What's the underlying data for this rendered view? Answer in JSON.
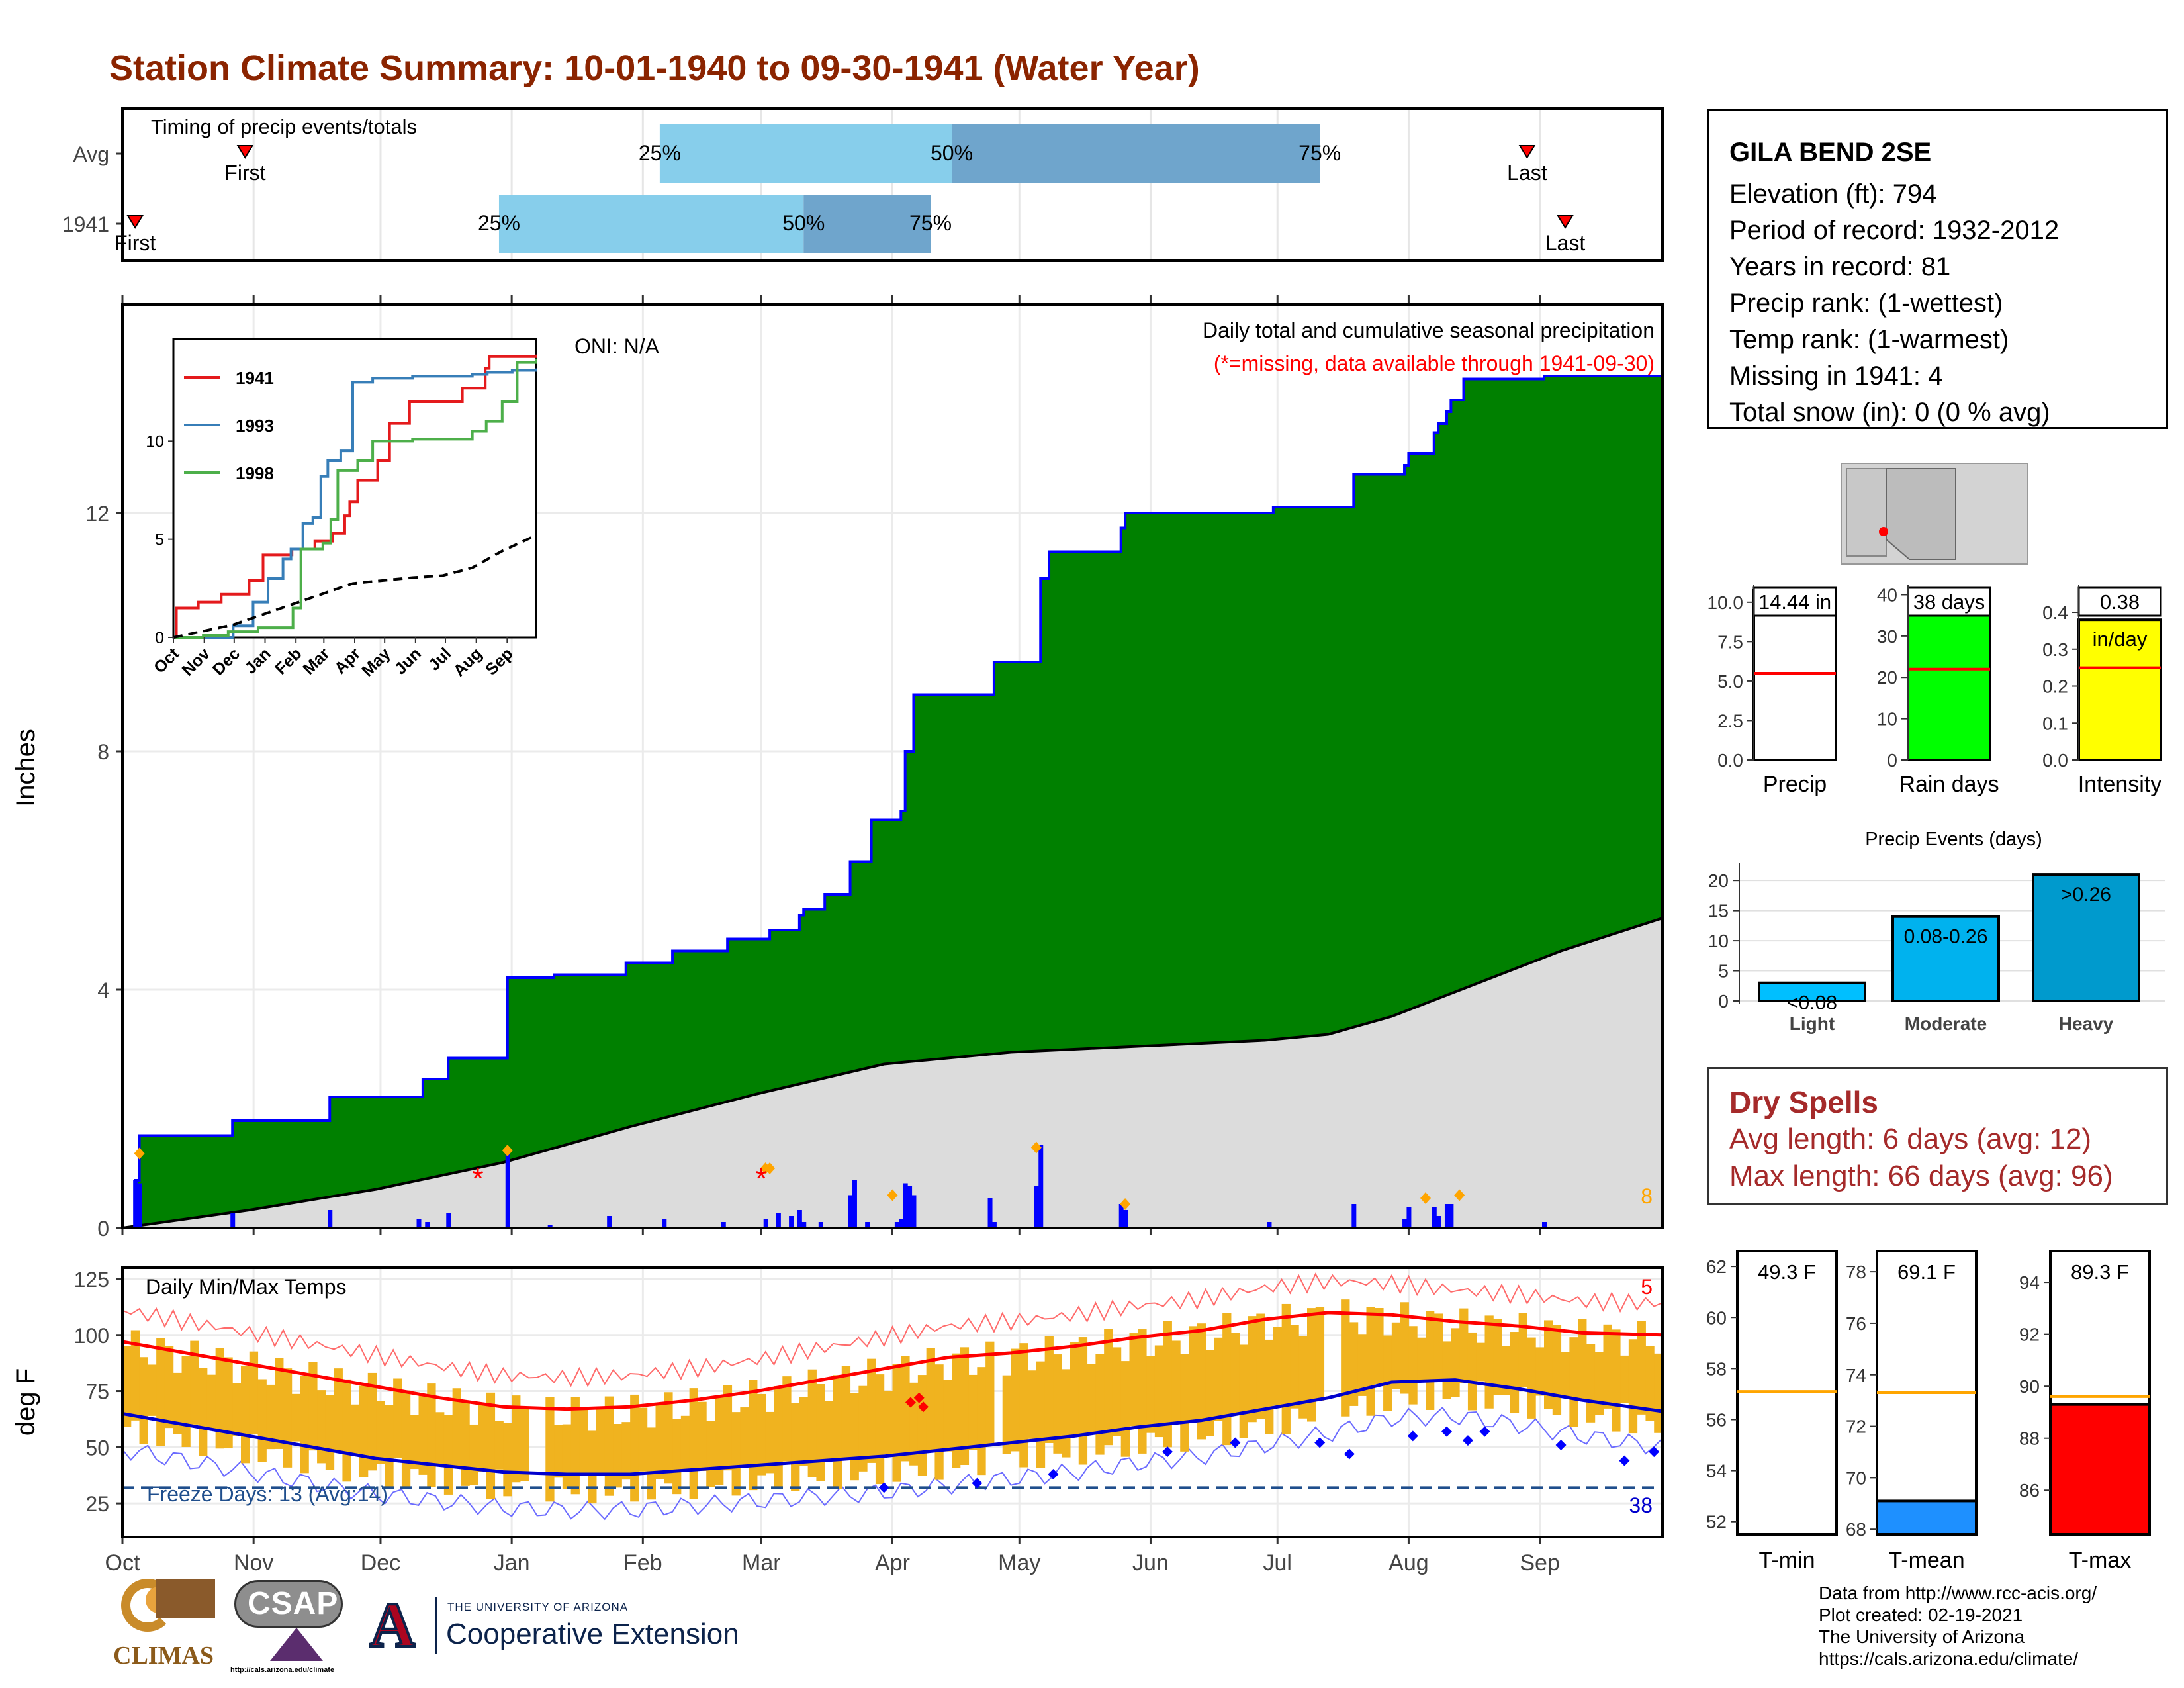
{
  "title": "Station Climate Summary: 10-01-1940 to 09-30-1941 (Water Year)",
  "station": {
    "name": "GILA BEND 2SE",
    "lines": [
      "Elevation (ft): 794",
      "Period of record: 1932-2012",
      "Years in record: 81",
      "Precip rank:  (1-wettest)",
      "Temp rank:  (1-warmest)",
      "Missing in 1941: 4",
      "Total snow (in): 0 (0 % avg)"
    ]
  },
  "dry_spells": {
    "title": "Dry Spells",
    "avg": "Avg length: 6 days (avg: 12)",
    "max": "Max length: 66 days (avg: 96)"
  },
  "credits": [
    "Data from http://www.rcc-acis.org/",
    "Plot created: 02-19-2021",
    "The University of Arizona",
    "https://cals.arizona.edu/climate/"
  ],
  "logos": {
    "climas": "CLIMAS",
    "csap": "CSAP",
    "csap_url": "http://cals.arizona.edu/climate",
    "ua_small": "THE UNIVERSITY OF ARIZONA",
    "ua_big": "Cooperative Extension"
  },
  "colors": {
    "title": "#8b2400",
    "cumulative_fill": "#008000",
    "cumulative_line": "#0000ff",
    "avg_fill": "#dcdcdc",
    "temp_bars": "#f0b31f",
    "max_line": "#ff0000",
    "min_line": "#0000cd",
    "bar_light": "#87ceeb",
    "bar_dark": "#6fa5cc"
  },
  "chart_data": [
    {
      "type": "bar",
      "name": "timing",
      "title": "Timing of precip events/totals",
      "rows": [
        {
          "label": "Avg",
          "q25_day": 127,
          "q50_day": 196,
          "q75_day": 283,
          "first_day": 29,
          "last_day": 332,
          "first_label": "First",
          "last_label": "Last"
        },
        {
          "label": "1941",
          "q25_day": 89,
          "q50_day": 161,
          "q75_day": 191,
          "first_day": 3,
          "last_day": 341,
          "first_label": "First",
          "last_label": "Last"
        }
      ],
      "q_labels": [
        "25%",
        "50%",
        "75%"
      ]
    },
    {
      "type": "area",
      "name": "precip",
      "title": "Daily total and cumulative seasonal precipitation",
      "subtitle": "(*=missing, data available through 1941-09-30)",
      "oni": "ONI: N/A",
      "ylabel": "Inches",
      "ylim": [
        0,
        15.5
      ],
      "yticks": [
        "0",
        "4",
        "8",
        "12"
      ],
      "xticks": [
        "Oct",
        "Nov",
        "Dec",
        "Jan",
        "Feb",
        "Mar",
        "Apr",
        "May",
        "Jun",
        "Jul",
        "Aug",
        "Sep"
      ],
      "corner_count": "8",
      "cumulative": [
        [
          0,
          0
        ],
        [
          3,
          0.8
        ],
        [
          4,
          1.55
        ],
        [
          25,
          1.55
        ],
        [
          26,
          1.8
        ],
        [
          48,
          1.8
        ],
        [
          49,
          2.2
        ],
        [
          70,
          2.2
        ],
        [
          71,
          2.5
        ],
        [
          76,
          2.5
        ],
        [
          77,
          2.85
        ],
        [
          90,
          2.85
        ],
        [
          91,
          4.2
        ],
        [
          101,
          4.2
        ],
        [
          102,
          4.25
        ],
        [
          118,
          4.25
        ],
        [
          119,
          4.45
        ],
        [
          129,
          4.45
        ],
        [
          130,
          4.65
        ],
        [
          142,
          4.65
        ],
        [
          143,
          4.85
        ],
        [
          152,
          4.85
        ],
        [
          153,
          5.0
        ],
        [
          159,
          5.0
        ],
        [
          160,
          5.25
        ],
        [
          161,
          5.35
        ],
        [
          165,
          5.35
        ],
        [
          166,
          5.6
        ],
        [
          171,
          5.6
        ],
        [
          172,
          6.15
        ],
        [
          177,
          6.85
        ],
        [
          183,
          6.85
        ],
        [
          184,
          7.0
        ],
        [
          185,
          8.0
        ],
        [
          187,
          8.95
        ],
        [
          205,
          8.95
        ],
        [
          206,
          9.5
        ],
        [
          216,
          9.5
        ],
        [
          217,
          10.9
        ],
        [
          219,
          11.35
        ],
        [
          235,
          11.35
        ],
        [
          236,
          11.75
        ],
        [
          237,
          12.0
        ],
        [
          271,
          12.0
        ],
        [
          272,
          12.1
        ],
        [
          290,
          12.1
        ],
        [
          291,
          12.65
        ],
        [
          302,
          12.65
        ],
        [
          303,
          12.8
        ],
        [
          304,
          13.0
        ],
        [
          309,
          13.0
        ],
        [
          310,
          13.35
        ],
        [
          311,
          13.5
        ],
        [
          313,
          13.7
        ],
        [
          314,
          13.9
        ],
        [
          316,
          13.9
        ],
        [
          317,
          14.25
        ],
        [
          335,
          14.25
        ],
        [
          336,
          14.3
        ],
        [
          364,
          14.3
        ]
      ],
      "average_cumulative": [
        [
          0,
          0
        ],
        [
          30,
          0.3
        ],
        [
          60,
          0.65
        ],
        [
          90,
          1.1
        ],
        [
          120,
          1.7
        ],
        [
          150,
          2.25
        ],
        [
          180,
          2.75
        ],
        [
          210,
          2.95
        ],
        [
          240,
          3.05
        ],
        [
          270,
          3.15
        ],
        [
          285,
          3.25
        ],
        [
          300,
          3.55
        ],
        [
          320,
          4.1
        ],
        [
          340,
          4.65
        ],
        [
          364,
          5.2
        ]
      ],
      "daily": [
        [
          3,
          0.8
        ],
        [
          4,
          0.75
        ],
        [
          26,
          0.25
        ],
        [
          49,
          0.3
        ],
        [
          70,
          0.15
        ],
        [
          72,
          0.1
        ],
        [
          77,
          0.25
        ],
        [
          91,
          1.25
        ],
        [
          101,
          0.05
        ],
        [
          115,
          0.2
        ],
        [
          128,
          0.15
        ],
        [
          142,
          0.1
        ],
        [
          152,
          0.15
        ],
        [
          155,
          0.25
        ],
        [
          158,
          0.2
        ],
        [
          160,
          0.3
        ],
        [
          161,
          0.1
        ],
        [
          165,
          0.1
        ],
        [
          172,
          0.55
        ],
        [
          173,
          0.8
        ],
        [
          176,
          0.1
        ],
        [
          183,
          0.1
        ],
        [
          184,
          0.15
        ],
        [
          185,
          0.75
        ],
        [
          186,
          0.7
        ],
        [
          187,
          0.55
        ],
        [
          205,
          0.5
        ],
        [
          206,
          0.1
        ],
        [
          216,
          0.7
        ],
        [
          217,
          1.4
        ],
        [
          236,
          0.4
        ],
        [
          237,
          0.3
        ],
        [
          271,
          0.1
        ],
        [
          291,
          0.4
        ],
        [
          303,
          0.15
        ],
        [
          304,
          0.35
        ],
        [
          310,
          0.35
        ],
        [
          311,
          0.2
        ],
        [
          313,
          0.4
        ],
        [
          314,
          0.4
        ],
        [
          336,
          0.1
        ]
      ],
      "missing_days": [
        84,
        151
      ],
      "event_days": [
        [
          4,
          1.25
        ],
        [
          91,
          1.3
        ],
        [
          152,
          1.0
        ],
        [
          153,
          1.0
        ],
        [
          182,
          0.55
        ],
        [
          216,
          1.35
        ],
        [
          237,
          0.4
        ],
        [
          308,
          0.5
        ],
        [
          316,
          0.55
        ]
      ]
    },
    {
      "type": "line",
      "name": "inset",
      "series": [
        {
          "name": "1941",
          "color": "#e41a1c",
          "points": [
            [
              0,
              0
            ],
            [
              3,
              1.5
            ],
            [
              25,
              1.8
            ],
            [
              48,
              2.2
            ],
            [
              76,
              2.9
            ],
            [
              90,
              4.2
            ],
            [
              119,
              4.5
            ],
            [
              142,
              4.9
            ],
            [
              160,
              5.3
            ],
            [
              172,
              6.2
            ],
            [
              177,
              6.9
            ],
            [
              185,
              8.0
            ],
            [
              205,
              9.0
            ],
            [
              217,
              10.9
            ],
            [
              237,
              12.0
            ],
            [
              270,
              12.0
            ],
            [
              290,
              12.7
            ],
            [
              313,
              13.7
            ],
            [
              317,
              14.3
            ],
            [
              364,
              14.4
            ]
          ]
        },
        {
          "name": "1993",
          "color": "#377eb8",
          "points": [
            [
              0,
              0
            ],
            [
              60,
              0.6
            ],
            [
              80,
              1.8
            ],
            [
              95,
              3.0
            ],
            [
              110,
              4.0
            ],
            [
              118,
              4.5
            ],
            [
              130,
              5.8
            ],
            [
              140,
              6.1
            ],
            [
              148,
              8.2
            ],
            [
              155,
              9.0
            ],
            [
              168,
              9.5
            ],
            [
              180,
              13.0
            ],
            [
              200,
              13.2
            ],
            [
              240,
              13.3
            ],
            [
              300,
              13.4
            ],
            [
              315,
              13.5
            ],
            [
              340,
              13.6
            ],
            [
              364,
              13.7
            ]
          ]
        },
        {
          "name": "1998",
          "color": "#4daf4a",
          "points": [
            [
              0,
              0
            ],
            [
              30,
              0.1
            ],
            [
              55,
              0.3
            ],
            [
              85,
              0.5
            ],
            [
              120,
              1.5
            ],
            [
              128,
              4.5
            ],
            [
              150,
              4.8
            ],
            [
              158,
              6.0
            ],
            [
              165,
              8.5
            ],
            [
              185,
              9.0
            ],
            [
              200,
              10.0
            ],
            [
              240,
              10.1
            ],
            [
              300,
              10.5
            ],
            [
              314,
              11.0
            ],
            [
              330,
              12.0
            ],
            [
              345,
              14.0
            ],
            [
              364,
              14.2
            ]
          ]
        },
        {
          "name": "avg",
          "color": "#000000",
          "dash": true,
          "points": [
            [
              0,
              0
            ],
            [
              60,
              0.65
            ],
            [
              120,
              1.7
            ],
            [
              180,
              2.75
            ],
            [
              240,
              3.05
            ],
            [
              270,
              3.15
            ],
            [
              300,
              3.55
            ],
            [
              330,
              4.4
            ],
            [
              364,
              5.2
            ]
          ]
        }
      ],
      "yticks": [
        "0",
        "5",
        "10"
      ],
      "ylim": [
        0,
        15
      ],
      "xticks": [
        "Oct",
        "Nov",
        "Dec",
        "Jan",
        "Feb",
        "Mar",
        "Apr",
        "May",
        "Jun",
        "Jul",
        "Aug",
        "Sep"
      ]
    },
    {
      "type": "bar",
      "name": "temps",
      "title": "Daily Min/Max Temps",
      "ylabel": "deg F",
      "ylim": [
        10,
        130
      ],
      "yticks": [
        "25",
        "50",
        "75",
        "100",
        "125"
      ],
      "xticks": [
        "Oct",
        "Nov",
        "Dec",
        "Jan",
        "Feb",
        "Mar",
        "Apr",
        "May",
        "Jun",
        "Jul",
        "Aug",
        "Sep"
      ],
      "freeze_line": 32,
      "freeze_label": "Freeze Days: 13 (Avg:14)",
      "corner_max": "5",
      "corner_min": "38",
      "avg_max": [
        [
          0,
          97
        ],
        [
          15,
          92
        ],
        [
          30,
          87
        ],
        [
          45,
          82
        ],
        [
          60,
          77
        ],
        [
          75,
          72
        ],
        [
          90,
          68
        ],
        [
          105,
          67
        ],
        [
          120,
          68
        ],
        [
          135,
          71
        ],
        [
          150,
          75
        ],
        [
          165,
          80
        ],
        [
          180,
          85
        ],
        [
          195,
          90
        ],
        [
          210,
          92
        ],
        [
          225,
          95
        ],
        [
          240,
          99
        ],
        [
          255,
          102
        ],
        [
          270,
          107
        ],
        [
          285,
          110
        ],
        [
          300,
          109
        ],
        [
          315,
          106
        ],
        [
          330,
          104
        ],
        [
          345,
          101
        ],
        [
          364,
          100
        ]
      ],
      "avg_min": [
        [
          0,
          65
        ],
        [
          15,
          60
        ],
        [
          30,
          55
        ],
        [
          45,
          50
        ],
        [
          60,
          45
        ],
        [
          75,
          42
        ],
        [
          90,
          39
        ],
        [
          105,
          38
        ],
        [
          120,
          38
        ],
        [
          135,
          40
        ],
        [
          150,
          42
        ],
        [
          165,
          44
        ],
        [
          180,
          46
        ],
        [
          195,
          49
        ],
        [
          210,
          52
        ],
        [
          225,
          55
        ],
        [
          240,
          59
        ],
        [
          255,
          62
        ],
        [
          270,
          67
        ],
        [
          285,
          72
        ],
        [
          300,
          79
        ],
        [
          315,
          80
        ],
        [
          330,
          76
        ],
        [
          345,
          71
        ],
        [
          364,
          66
        ]
      ]
    },
    {
      "type": "bar",
      "name": "summary_precip",
      "panels": [
        {
          "label": "Precip",
          "value_label": "14.44 in",
          "value": 14.44,
          "avg": 5.5,
          "ymax": 11,
          "ticks": [
            "0.0",
            "2.5",
            "5.0",
            "7.5",
            "10.0"
          ],
          "color": "#ffffff"
        },
        {
          "label": "Rain days",
          "value_label": "38 days",
          "value": 38,
          "avg": 22,
          "ymax": 42,
          "ticks": [
            "0",
            "10",
            "20",
            "30",
            "40"
          ],
          "color": "#00ff00"
        },
        {
          "label": "Intensity",
          "value_label": "0.38",
          "unit_label": "in/day",
          "value": 0.38,
          "avg": 0.25,
          "ymax": 0.47,
          "ticks": [
            "0.0",
            "0.1",
            "0.2",
            "0.3",
            "0.4"
          ],
          "color": "#ffff00"
        }
      ]
    },
    {
      "type": "bar",
      "name": "precip_events",
      "title": "Precip Events (days)",
      "categories": [
        "Light",
        "Moderate",
        "Heavy"
      ],
      "values": [
        3,
        14,
        21
      ],
      "bar_labels": [
        "<0.08",
        "0.08-0.26",
        ">0.26"
      ],
      "colors": [
        "#00bfff",
        "#00b2ee",
        "#009acd"
      ],
      "yticks": [
        "0",
        "5",
        "10",
        "15",
        "20"
      ],
      "ylim": [
        0,
        22
      ]
    },
    {
      "type": "bar",
      "name": "temp_summary",
      "panels": [
        {
          "label": "T-min",
          "value_label": "49.3 F",
          "value": 49.3,
          "avg": 57.1,
          "ymin": 51.5,
          "ymax": 62.6,
          "ticks": [
            "52",
            "54",
            "56",
            "58",
            "60",
            "62"
          ],
          "color": "#ffffff"
        },
        {
          "label": "T-mean",
          "value_label": "69.1 F",
          "value": 69.1,
          "avg": 73.3,
          "ymin": 67.8,
          "ymax": 78.8,
          "ticks": [
            "68",
            "70",
            "72",
            "74",
            "76",
            "78"
          ],
          "color": "#1e90ff"
        },
        {
          "label": "T-max",
          "value_label": "89.3 F",
          "value": 89.3,
          "avg": 89.6,
          "ymin": 84.3,
          "ymax": 95.2,
          "ticks": [
            "86",
            "88",
            "90",
            "92",
            "94"
          ],
          "color": "#ff0000"
        }
      ]
    }
  ]
}
